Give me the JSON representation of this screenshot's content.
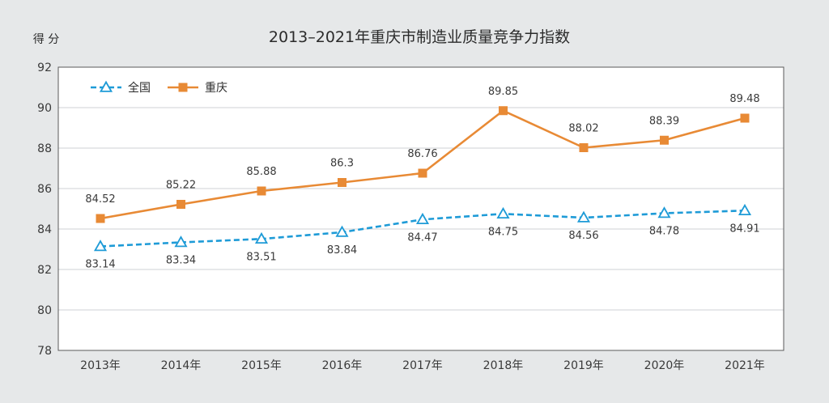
{
  "chart_data": {
    "type": "line",
    "title": "2013–2021年重庆市制造业质量竞争力指数",
    "ylabel": "得 分",
    "xlabel": "",
    "categories": [
      "2013年",
      "2014年",
      "2015年",
      "2016年",
      "2017年",
      "2018年",
      "2019年",
      "2020年",
      "2021年"
    ],
    "ylim": [
      78,
      92
    ],
    "yticks": [
      78,
      80,
      82,
      84,
      86,
      88,
      90,
      92
    ],
    "grid": true,
    "legend_position": "top-left",
    "series": [
      {
        "name": "全国",
        "values": [
          83.14,
          83.34,
          83.51,
          83.84,
          84.47,
          84.75,
          84.56,
          84.78,
          84.91
        ],
        "labels": [
          "83.14",
          "83.34",
          "83.51",
          "83.84",
          "84.47",
          "84.75",
          "84.56",
          "84.78",
          "84.91"
        ],
        "color": "#1e9bd7",
        "marker": "triangle",
        "line_style": "dashed",
        "label_position": "below"
      },
      {
        "name": "重庆",
        "values": [
          84.52,
          85.22,
          85.88,
          86.3,
          86.76,
          89.85,
          88.02,
          88.39,
          89.48
        ],
        "labels": [
          "84.52",
          "85.22",
          "85.88",
          "86.3",
          "86.76",
          "89.85",
          "88.02",
          "88.39",
          "89.48"
        ],
        "color": "#e88a35",
        "marker": "square",
        "line_style": "solid",
        "label_position": "above"
      }
    ]
  }
}
